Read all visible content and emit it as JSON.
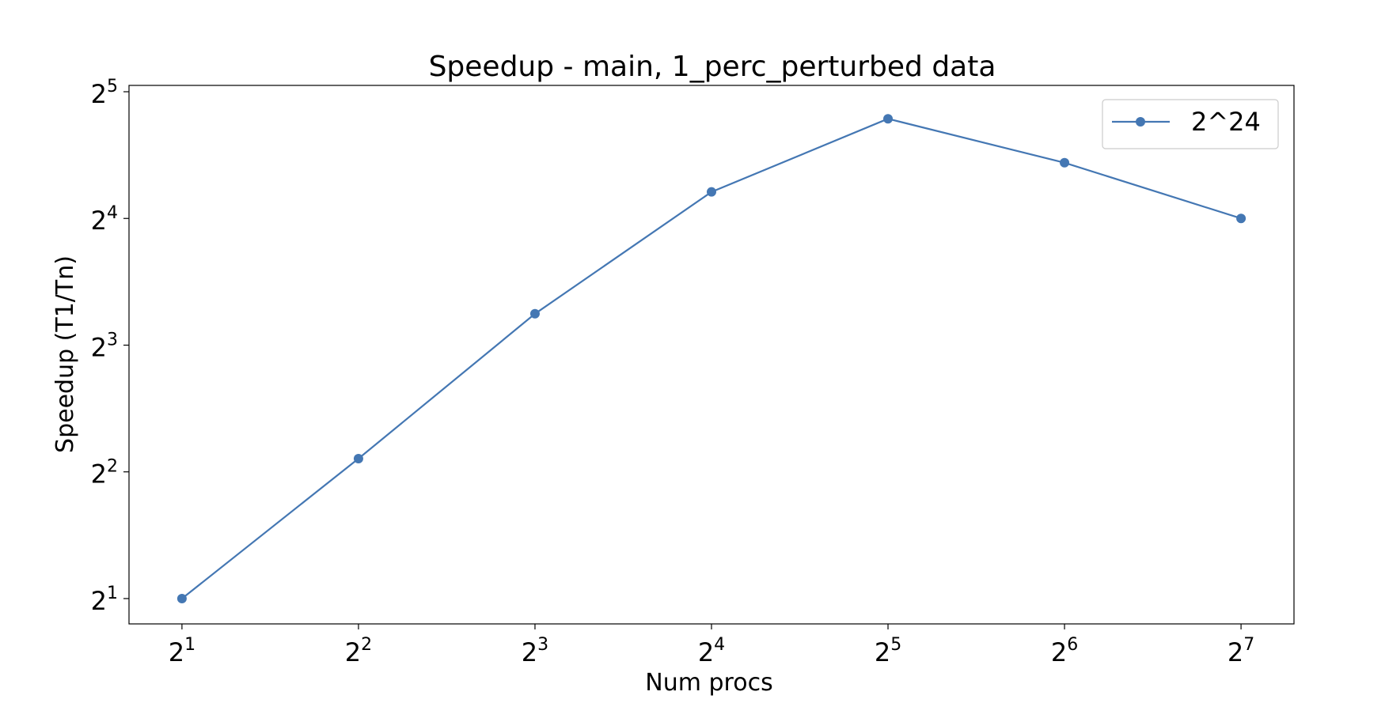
{
  "chart_data": {
    "type": "line",
    "title": "Speedup - main, 1_perc_perturbed data",
    "xlabel": "Num procs",
    "ylabel": "Speedup (T1/Tn)",
    "xscale": "log2",
    "yscale": "log2",
    "x_ticks": [
      {
        "base": "2",
        "exp": "1"
      },
      {
        "base": "2",
        "exp": "2"
      },
      {
        "base": "2",
        "exp": "3"
      },
      {
        "base": "2",
        "exp": "4"
      },
      {
        "base": "2",
        "exp": "5"
      },
      {
        "base": "2",
        "exp": "6"
      },
      {
        "base": "2",
        "exp": "7"
      }
    ],
    "y_ticks": [
      {
        "base": "2",
        "exp": "1"
      },
      {
        "base": "2",
        "exp": "2"
      },
      {
        "base": "2",
        "exp": "3"
      },
      {
        "base": "2",
        "exp": "4"
      },
      {
        "base": "2",
        "exp": "5"
      }
    ],
    "x": [
      2,
      4,
      8,
      16,
      32,
      64,
      128
    ],
    "series": [
      {
        "name": "2^24",
        "color": "#4477b3",
        "marker": "circle",
        "values": [
          2.0,
          4.3,
          9.5,
          18.5,
          27.6,
          21.7,
          16.0
        ]
      }
    ],
    "legend_position": "top-right",
    "grid": false
  }
}
